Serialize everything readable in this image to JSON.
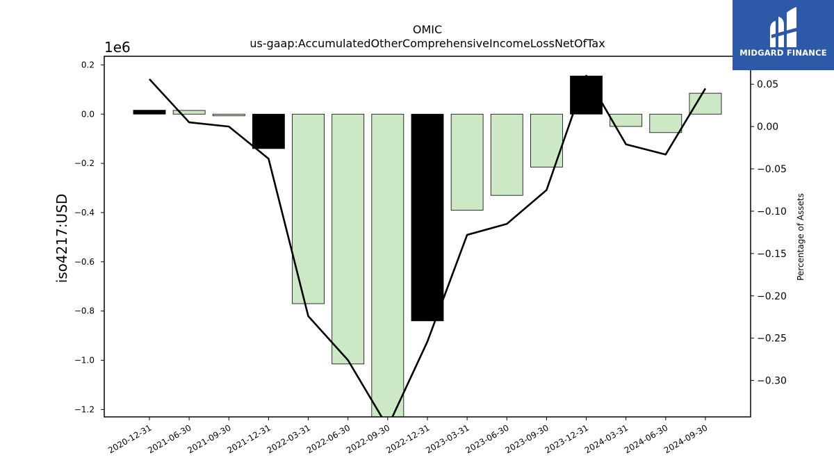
{
  "chart_data": {
    "type": "bar",
    "title": "OMIC",
    "subtitle": "us-gaap:AccumulatedOtherComprehensiveIncomeLossNetOfTax",
    "ylabel": "iso4217:USD",
    "y_exponent_label": "1e6",
    "y2label": "Percentage of Assets",
    "categories": [
      "2020-12-31",
      "2021-06-30",
      "2021-09-30",
      "2021-12-31",
      "2022-03-31",
      "2022-06-30",
      "2022-09-30",
      "2022-12-31",
      "2023-03-31",
      "2023-06-30",
      "2023-09-30",
      "2023-12-31",
      "2024-03-31",
      "2024-06-30",
      "2024-09-30"
    ],
    "series": [
      {
        "type": "bar",
        "axis": "left",
        "values": [
          16000,
          15000,
          -7000,
          -140000,
          -770000,
          -1015000,
          -1230000,
          -840000,
          -390000,
          -330000,
          -215000,
          155000,
          -50000,
          -75000,
          85000
        ],
        "colors": [
          "#000000",
          "#cce8c5",
          "#cce8c5",
          "#000000",
          "#cce8c5",
          "#cce8c5",
          "#cce8c5",
          "#000000",
          "#cce8c5",
          "#cce8c5",
          "#cce8c5",
          "#000000",
          "#cce8c5",
          "#cce8c5",
          "#cce8c5"
        ]
      },
      {
        "type": "line",
        "axis": "right",
        "color": "#000000",
        "values": [
          0.056,
          0.005,
          0.0,
          -0.038,
          -0.224,
          -0.276,
          -0.355,
          -0.254,
          -0.128,
          -0.115,
          -0.075,
          0.06,
          -0.021,
          -0.033,
          0.045
        ]
      }
    ],
    "ylim": [
      -1.23,
      0.235
    ],
    "yticks": [
      0.2,
      0.0,
      -0.2,
      -0.4,
      -0.6,
      -0.8,
      -1.0,
      -1.2
    ],
    "ytick_labels": [
      "0.2",
      "0.0",
      "−0.2",
      "−0.4",
      "−0.6",
      "−0.8",
      "−1.0",
      "−1.2"
    ],
    "y2lim": [
      -0.343,
      0.083
    ],
    "y2ticks": [
      0.05,
      0.0,
      -0.05,
      -0.1,
      -0.15,
      -0.2,
      -0.25,
      -0.3
    ],
    "y2tick_labels": [
      "0.05",
      "0.00",
      "−0.05",
      "−0.10",
      "−0.15",
      "−0.20",
      "−0.25",
      "−0.30"
    ],
    "grid": false,
    "legend": "none"
  },
  "logo": {
    "text": "MIDGARD FINANCE",
    "background": "#2c5aa8"
  }
}
